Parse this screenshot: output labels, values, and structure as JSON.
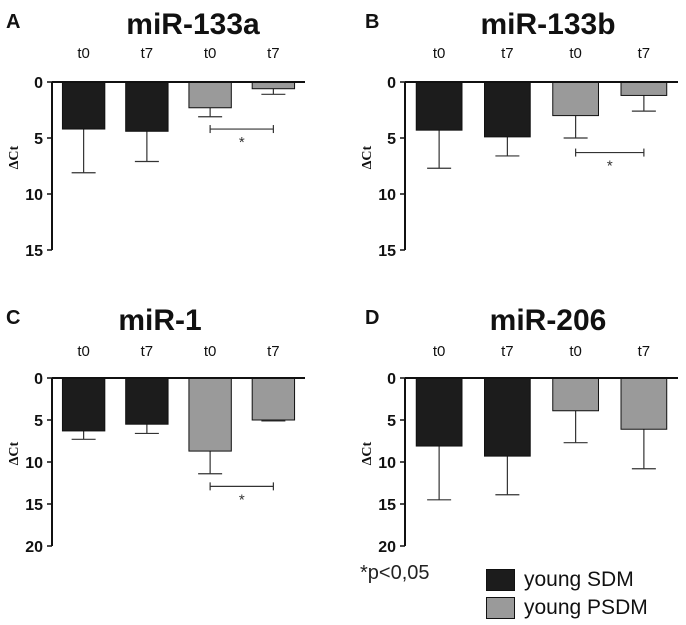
{
  "colors": {
    "sdm": "#1c1c1c",
    "psdm": "#9a9a9a",
    "axis": "#111111",
    "error": "#333333"
  },
  "chart_data": [
    {
      "panel": "A",
      "type": "bar",
      "title": "miR-133a",
      "ylabel": "ΔCt",
      "ylim": [
        0,
        15
      ],
      "yticks": [
        "0",
        "5",
        "10",
        "15"
      ],
      "inverted": true,
      "categories": [
        "t0",
        "t7",
        "t0",
        "t7"
      ],
      "series": [
        {
          "name": "young SDM",
          "values": [
            4.2,
            4.4,
            null,
            null
          ],
          "errors": [
            3.9,
            2.7,
            null,
            null
          ]
        },
        {
          "name": "young PSDM",
          "values": [
            null,
            null,
            2.3,
            0.6
          ],
          "errors": [
            null,
            null,
            0.8,
            0.5
          ]
        }
      ],
      "significance": {
        "from": 2,
        "to": 3,
        "label": "*",
        "at": 4.2
      }
    },
    {
      "panel": "B",
      "type": "bar",
      "title": "miR-133b",
      "ylabel": "ΔCt",
      "ylim": [
        0,
        15
      ],
      "yticks": [
        "0",
        "5",
        "10",
        "15"
      ],
      "inverted": true,
      "categories": [
        "t0",
        "t7",
        "t0",
        "t7"
      ],
      "series": [
        {
          "name": "young SDM",
          "values": [
            4.3,
            4.9,
            null,
            null
          ],
          "errors": [
            3.4,
            1.7,
            null,
            null
          ]
        },
        {
          "name": "young PSDM",
          "values": [
            null,
            null,
            3.0,
            1.2
          ],
          "errors": [
            null,
            null,
            2.0,
            1.4
          ]
        }
      ],
      "significance": {
        "from": 2,
        "to": 3,
        "label": "*",
        "at": 6.3
      }
    },
    {
      "panel": "C",
      "type": "bar",
      "title": "miR-1",
      "ylabel": "ΔCt",
      "ylim": [
        0,
        20
      ],
      "yticks": [
        "0",
        "5",
        "10",
        "15",
        "20"
      ],
      "inverted": true,
      "categories": [
        "t0",
        "t7",
        "t0",
        "t7"
      ],
      "series": [
        {
          "name": "young SDM",
          "values": [
            6.3,
            5.5,
            null,
            null
          ],
          "errors": [
            1.0,
            1.1,
            null,
            null
          ]
        },
        {
          "name": "young PSDM",
          "values": [
            null,
            null,
            8.7,
            5.0
          ],
          "errors": [
            null,
            null,
            2.7,
            0.1
          ]
        }
      ],
      "significance": {
        "from": 2,
        "to": 3,
        "label": "*",
        "at": 12.9
      }
    },
    {
      "panel": "D",
      "type": "bar",
      "title": "miR-206",
      "ylabel": "ΔCt",
      "ylim": [
        0,
        20
      ],
      "yticks": [
        "0",
        "5",
        "10",
        "15",
        "20"
      ],
      "inverted": true,
      "categories": [
        "t0",
        "t7",
        "t0",
        "t7"
      ],
      "series": [
        {
          "name": "young SDM",
          "values": [
            8.1,
            9.3,
            null,
            null
          ],
          "errors": [
            6.4,
            4.6,
            null,
            null
          ]
        },
        {
          "name": "young PSDM",
          "values": [
            null,
            null,
            3.9,
            6.1
          ],
          "errors": [
            null,
            null,
            3.8,
            4.7
          ]
        }
      ],
      "significance": null
    }
  ],
  "significance_note": "*p<0,05",
  "legend": [
    {
      "label": "young SDM",
      "color": "#1c1c1c"
    },
    {
      "label": "young PSDM",
      "color": "#9a9a9a"
    }
  ]
}
